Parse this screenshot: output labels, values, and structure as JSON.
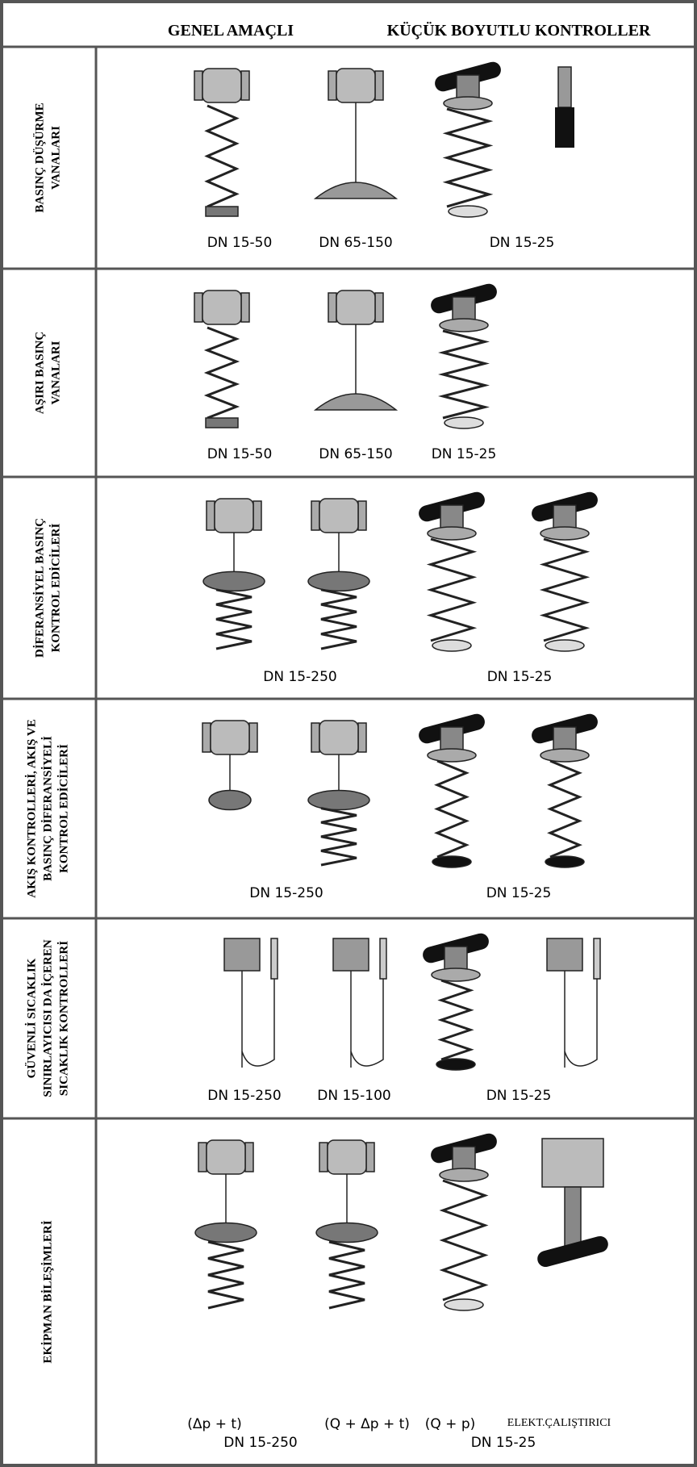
{
  "header": {
    "columns": [
      "GENEL AMAÇLI",
      "KÜÇÜK BOYUTLU KONTROLLER"
    ]
  },
  "table": {
    "rows": [
      {
        "label": [
          "BASINÇ DÜŞÜRME",
          "VANALARI"
        ],
        "captions": [
          "DN 15-50",
          "DN 65-150",
          "DN 15-25"
        ]
      },
      {
        "label": [
          "AŞIRI BASINÇ",
          "VANALARI"
        ],
        "captions": [
          "DN 15-50",
          "DN 65-150",
          "DN 15-25"
        ]
      },
      {
        "label": [
          "DİFERANSİYEL  BASINÇ",
          "KONTROL EDİCİLERİ"
        ],
        "captions": [
          "DN 15-250",
          "DN 15-25"
        ]
      },
      {
        "label": [
          "AKIŞ KONTROLLERİ, AKIŞ VE",
          "BASINÇ DİFERANSİYELİ",
          "KONTROL EDİCİLERİ"
        ],
        "captions": [
          "DN 15-250",
          "DN 15-25"
        ]
      },
      {
        "label": [
          "GÜVENLİ SICAKLIK",
          "SINIRLAYICISI DA İÇEREN",
          "SICAKLIK KONTROLLERİ"
        ],
        "captions": [
          "DN 15-250",
          "DN 15-100",
          "DN 15-25"
        ]
      },
      {
        "label": [
          "EKİPMAN BİLEŞİMLERİ"
        ],
        "captions": [
          "(Δp + t)",
          "(Q + Δp + t)",
          "(Q + p)",
          "ELEKT.ÇALIŞTIRICI",
          "DN 15-250",
          "DN 15-25"
        ]
      }
    ]
  }
}
